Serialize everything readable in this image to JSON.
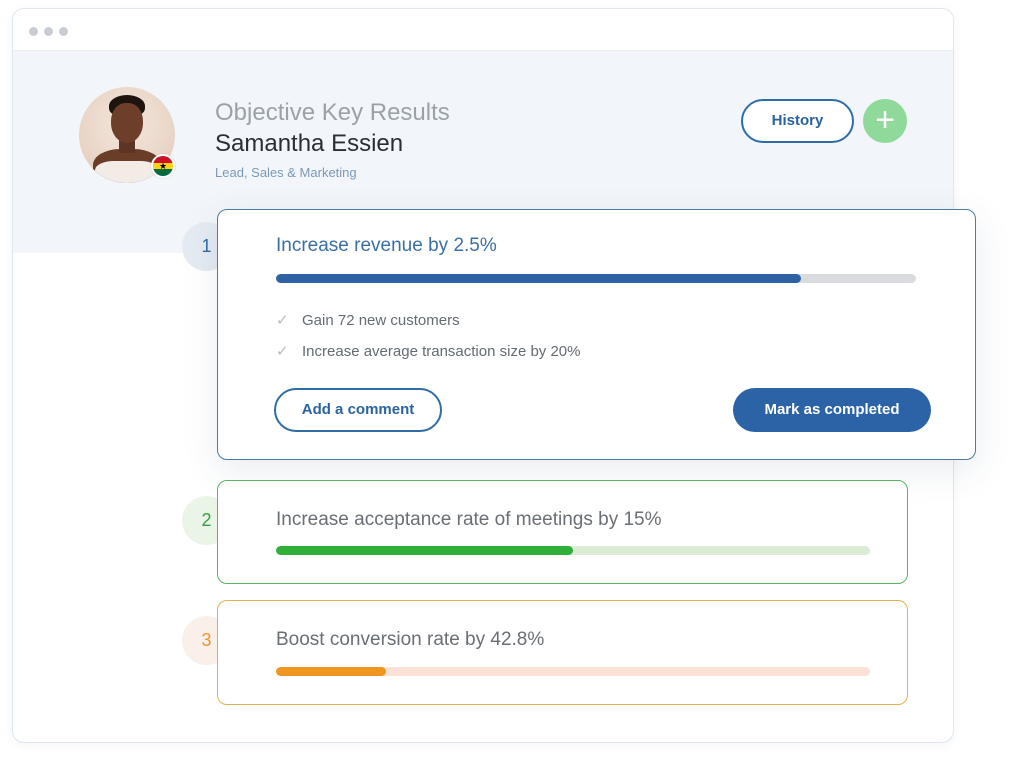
{
  "header": {
    "heading": "Objective Key Results",
    "name": "Samantha Essien",
    "role": "Lead, Sales & Marketing",
    "history_label": "History",
    "add_label": "+",
    "flag": "ghana-flag"
  },
  "objectives": [
    {
      "number": "1",
      "title": "Increase revenue by 2.5%",
      "progress": 0.82,
      "key_results": [
        "Gain 72 new customers",
        "Increase average transaction size by 20%"
      ],
      "comment_label": "Add a comment",
      "complete_label": "Mark as completed"
    },
    {
      "number": "2",
      "title": "Increase acceptance rate of meetings by 15%",
      "progress": 0.5
    },
    {
      "number": "3",
      "title": "Boost conversion rate by 42.8%",
      "progress": 0.185
    }
  ],
  "icons": {
    "check": "✓",
    "window_dots": "window-controls"
  },
  "colors": {
    "primary": "#2c63a6",
    "green": "#2fae3a",
    "orange": "#ef9620",
    "add_button": "#8fd99a"
  }
}
